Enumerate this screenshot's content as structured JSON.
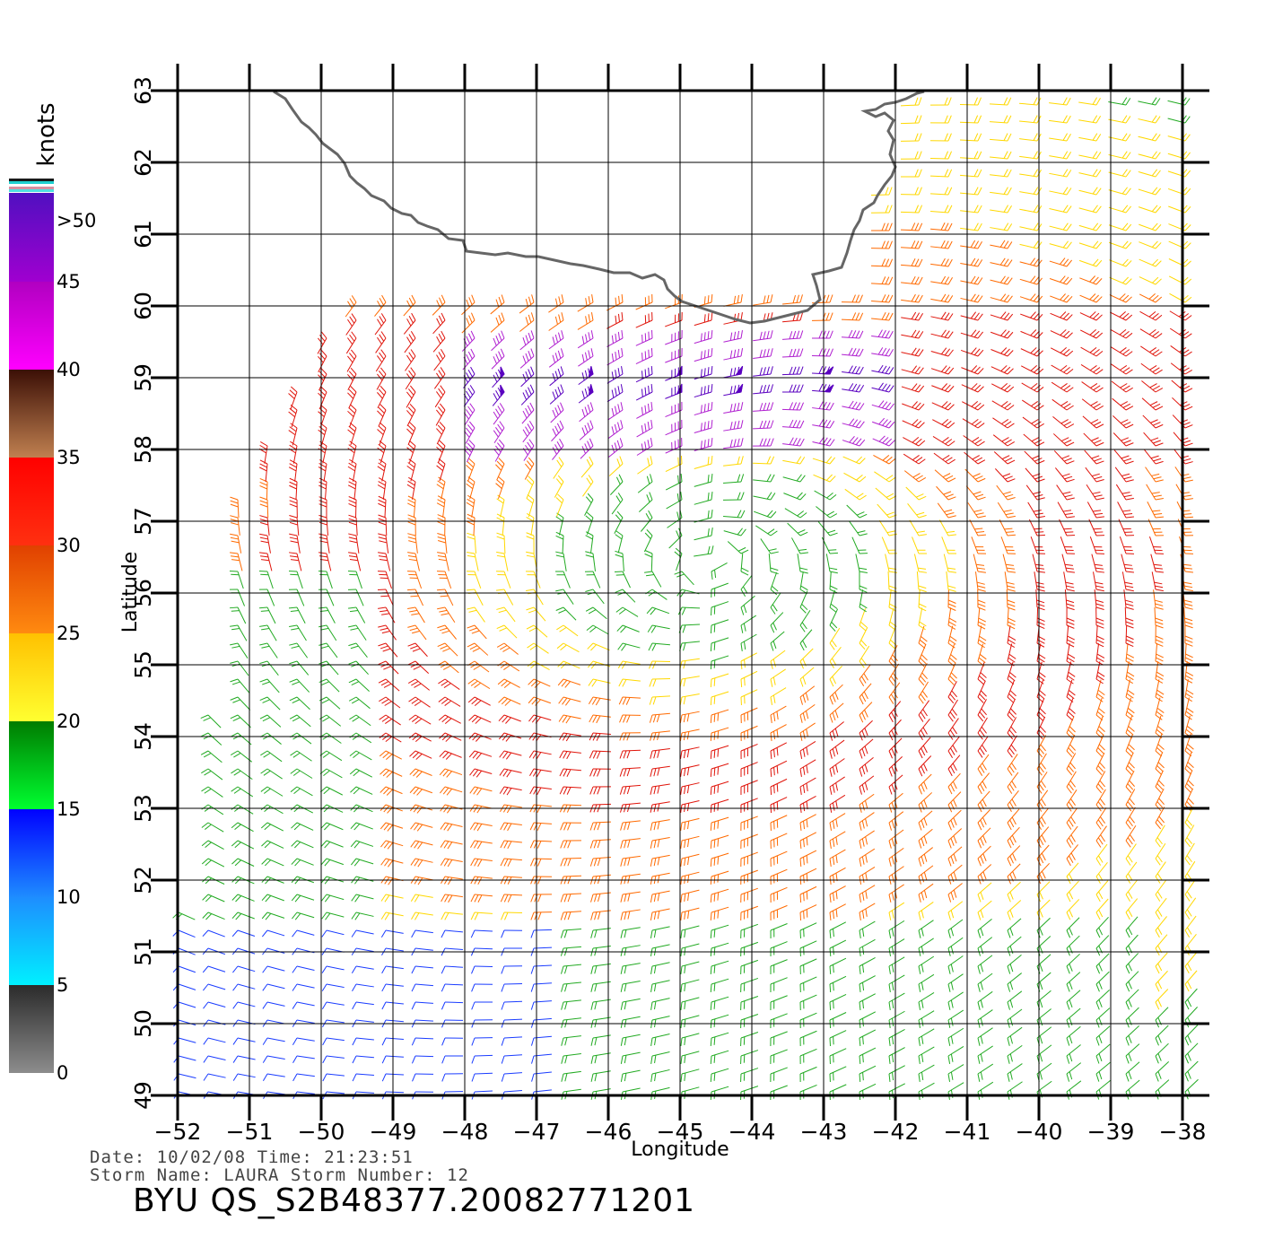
{
  "map": {
    "lon_ticks": [
      "−52",
      "−51",
      "−50",
      "−49",
      "−48",
      "−47",
      "−46",
      "−45",
      "−44",
      "−43",
      "−42",
      "−41",
      "−40",
      "−39",
      "−38"
    ],
    "lat_ticks": [
      "49",
      "50",
      "51",
      "52",
      "53",
      "54",
      "55",
      "56",
      "57",
      "58",
      "59",
      "60",
      "61",
      "62",
      "63"
    ],
    "xlabel": "Longitude",
    "ylabel": "Latitude",
    "coast_color": "#666666"
  },
  "colorbar": {
    "unit": "knots",
    "labels": [
      "0",
      "5",
      "10",
      "15",
      "20",
      "25",
      "30",
      "35",
      "40",
      "45",
      ">50"
    ],
    "bands": [
      {
        "from": 0,
        "to": 5,
        "top": "#2a2a2a",
        "bottom": "#8c8c8c"
      },
      {
        "from": 5,
        "to": 10,
        "top": "#1e8cff",
        "bottom": "#00f0ff"
      },
      {
        "from": 10,
        "to": 15,
        "top": "#0000ff",
        "bottom": "#1e8cff"
      },
      {
        "from": 15,
        "to": 20,
        "top": "#007a00",
        "bottom": "#00ff30"
      },
      {
        "from": 20,
        "to": 25,
        "top": "#ffc000",
        "bottom": "#ffff30"
      },
      {
        "from": 25,
        "to": 30,
        "top": "#e04000",
        "bottom": "#ff8a10"
      },
      {
        "from": 30,
        "to": 35,
        "top": "#ff0000",
        "bottom": "#ff3010"
      },
      {
        "from": 35,
        "to": 40,
        "top": "#3a0e05",
        "bottom": "#c08050"
      },
      {
        "from": 40,
        "to": 45,
        "top": "#b000c0",
        "bottom": "#ff00ff"
      },
      {
        "from": 45,
        "to": 50,
        "top": "#5010c0",
        "bottom": "#a000d0"
      }
    ]
  },
  "footer": {
    "date_line": "Date: 10/02/08   Time: 21:23:51",
    "storm_line": "Storm Name: LAURA   Storm Number: 12",
    "product_id": "BYU QS_S2B48377.20082771201"
  }
}
